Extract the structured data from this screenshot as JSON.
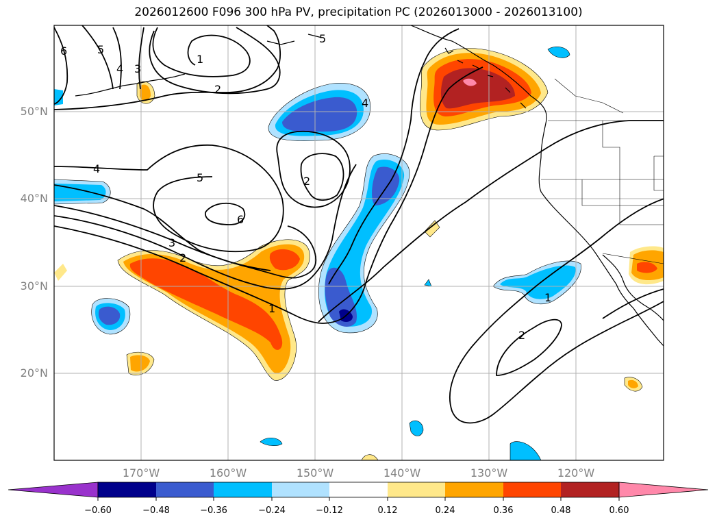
{
  "title": "2026012600 F096 300 hPa PV, precipitation PC (2026013000 - 2026013100)",
  "map": {
    "lat_labels": [
      "50°N",
      "40°N",
      "30°N",
      "20°N"
    ],
    "lon_labels": [
      "170°W",
      "160°W",
      "150°W",
      "140°W",
      "130°W",
      "120°W"
    ],
    "contour_labels": [
      "6",
      "5",
      "4",
      "3",
      "1",
      "2",
      "5",
      "4",
      "2",
      "4",
      "5",
      "6",
      "3",
      "2",
      "1",
      "1",
      "2"
    ]
  },
  "colorbar": {
    "ticks": [
      "−0.60",
      "−0.48",
      "−0.36",
      "−0.24",
      "−0.12",
      "0.12",
      "0.24",
      "0.36",
      "0.48",
      "0.60"
    ],
    "colors": [
      "#9932cc",
      "#00008b",
      "#3a5bcf",
      "#00bfff",
      "#b0e2ff",
      "#ffffff",
      "#ffe88a",
      "#ffa500",
      "#ff4500",
      "#b22222",
      "#ff88aa"
    ]
  }
}
